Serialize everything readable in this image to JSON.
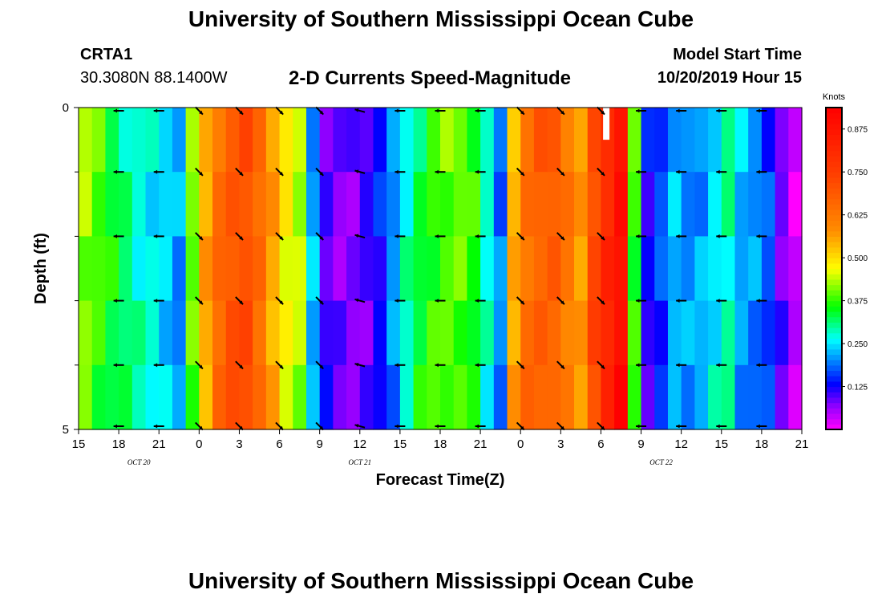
{
  "header": {
    "title": "University of Southern Mississippi Ocean Cube",
    "station_id": "CRTA1",
    "station_coords": "30.3080N 88.1400W",
    "chart_title": "2-D Currents Speed-Magnitude",
    "model_start_label": "Model Start Time",
    "model_start_value": "10/20/2019 Hour 15"
  },
  "footer": {
    "title": "University of Southern Mississippi Ocean Cube"
  },
  "chart_data": {
    "type": "heatmap",
    "title": "2-D Currents Speed-Magnitude",
    "xlabel": "Forecast Time(Z)",
    "ylabel": "Depth (ft)",
    "x_unit": "hours from model start",
    "x_range": [
      0,
      54
    ],
    "x_ticks": [
      {
        "t": 0,
        "label": "15"
      },
      {
        "t": 3,
        "label": "18"
      },
      {
        "t": 6,
        "label": "21"
      },
      {
        "t": 9,
        "label": "0"
      },
      {
        "t": 12,
        "label": "3"
      },
      {
        "t": 15,
        "label": "6"
      },
      {
        "t": 18,
        "label": "9"
      },
      {
        "t": 21,
        "label": "12"
      },
      {
        "t": 24,
        "label": "15"
      },
      {
        "t": 27,
        "label": "18"
      },
      {
        "t": 30,
        "label": "21"
      },
      {
        "t": 33,
        "label": "0"
      },
      {
        "t": 36,
        "label": "3"
      },
      {
        "t": 39,
        "label": "6"
      },
      {
        "t": 42,
        "label": "9"
      },
      {
        "t": 45,
        "label": "12"
      },
      {
        "t": 48,
        "label": "15"
      },
      {
        "t": 51,
        "label": "18"
      },
      {
        "t": 54,
        "label": "21"
      }
    ],
    "date_labels": [
      {
        "t": 4.5,
        "label": "OCT 20"
      },
      {
        "t": 21,
        "label": "OCT 21"
      },
      {
        "t": 43.5,
        "label": "OCT 22"
      }
    ],
    "y_range": [
      0,
      5
    ],
    "y_ticks": [
      {
        "v": 0,
        "label": "0"
      },
      {
        "v": 5,
        "label": "5"
      }
    ],
    "y_minor_ticks": [
      1,
      2,
      3,
      4
    ],
    "colorbar": {
      "title": "Knots",
      "range": [
        0,
        0.9375
      ],
      "ticks": [
        0.125,
        0.25,
        0.375,
        0.5,
        0.625,
        0.75,
        0.875
      ],
      "tick_labels": [
        "0.125",
        "0.250",
        "0.375",
        "0.500",
        "0.625",
        "0.750",
        "0.875"
      ]
    },
    "n_time_columns": 54,
    "depth_bands": 5,
    "speed_profile_knots": [
      0.42,
      0.38,
      0.34,
      0.31,
      0.28,
      0.27,
      0.25,
      0.21,
      0.4,
      0.55,
      0.65,
      0.7,
      0.72,
      0.66,
      0.56,
      0.47,
      0.43,
      0.22,
      0.1,
      0.08,
      0.08,
      0.1,
      0.13,
      0.2,
      0.28,
      0.34,
      0.38,
      0.4,
      0.4,
      0.36,
      0.27,
      0.19,
      0.55,
      0.65,
      0.68,
      0.68,
      0.62,
      0.56,
      0.72,
      0.82,
      0.9,
      0.38,
      0.12,
      0.16,
      0.22,
      0.2,
      0.22,
      0.26,
      0.3,
      0.22,
      0.2,
      0.16,
      0.08,
      0.03
    ],
    "arrow_times": [
      3,
      6,
      9,
      12,
      15,
      18,
      21,
      24,
      27,
      30,
      33,
      36,
      39,
      42,
      45,
      48,
      51
    ],
    "arrow_depths": [
      0,
      1,
      2,
      3,
      4,
      5
    ],
    "arrow_directions_deg": [
      180,
      180,
      315,
      315,
      315,
      315,
      165,
      180,
      180,
      180,
      315,
      315,
      315,
      180,
      180,
      180,
      180
    ],
    "missing_marks": [
      {
        "t": 39.4,
        "depth_from": 0,
        "depth_to": 0.5
      }
    ]
  }
}
